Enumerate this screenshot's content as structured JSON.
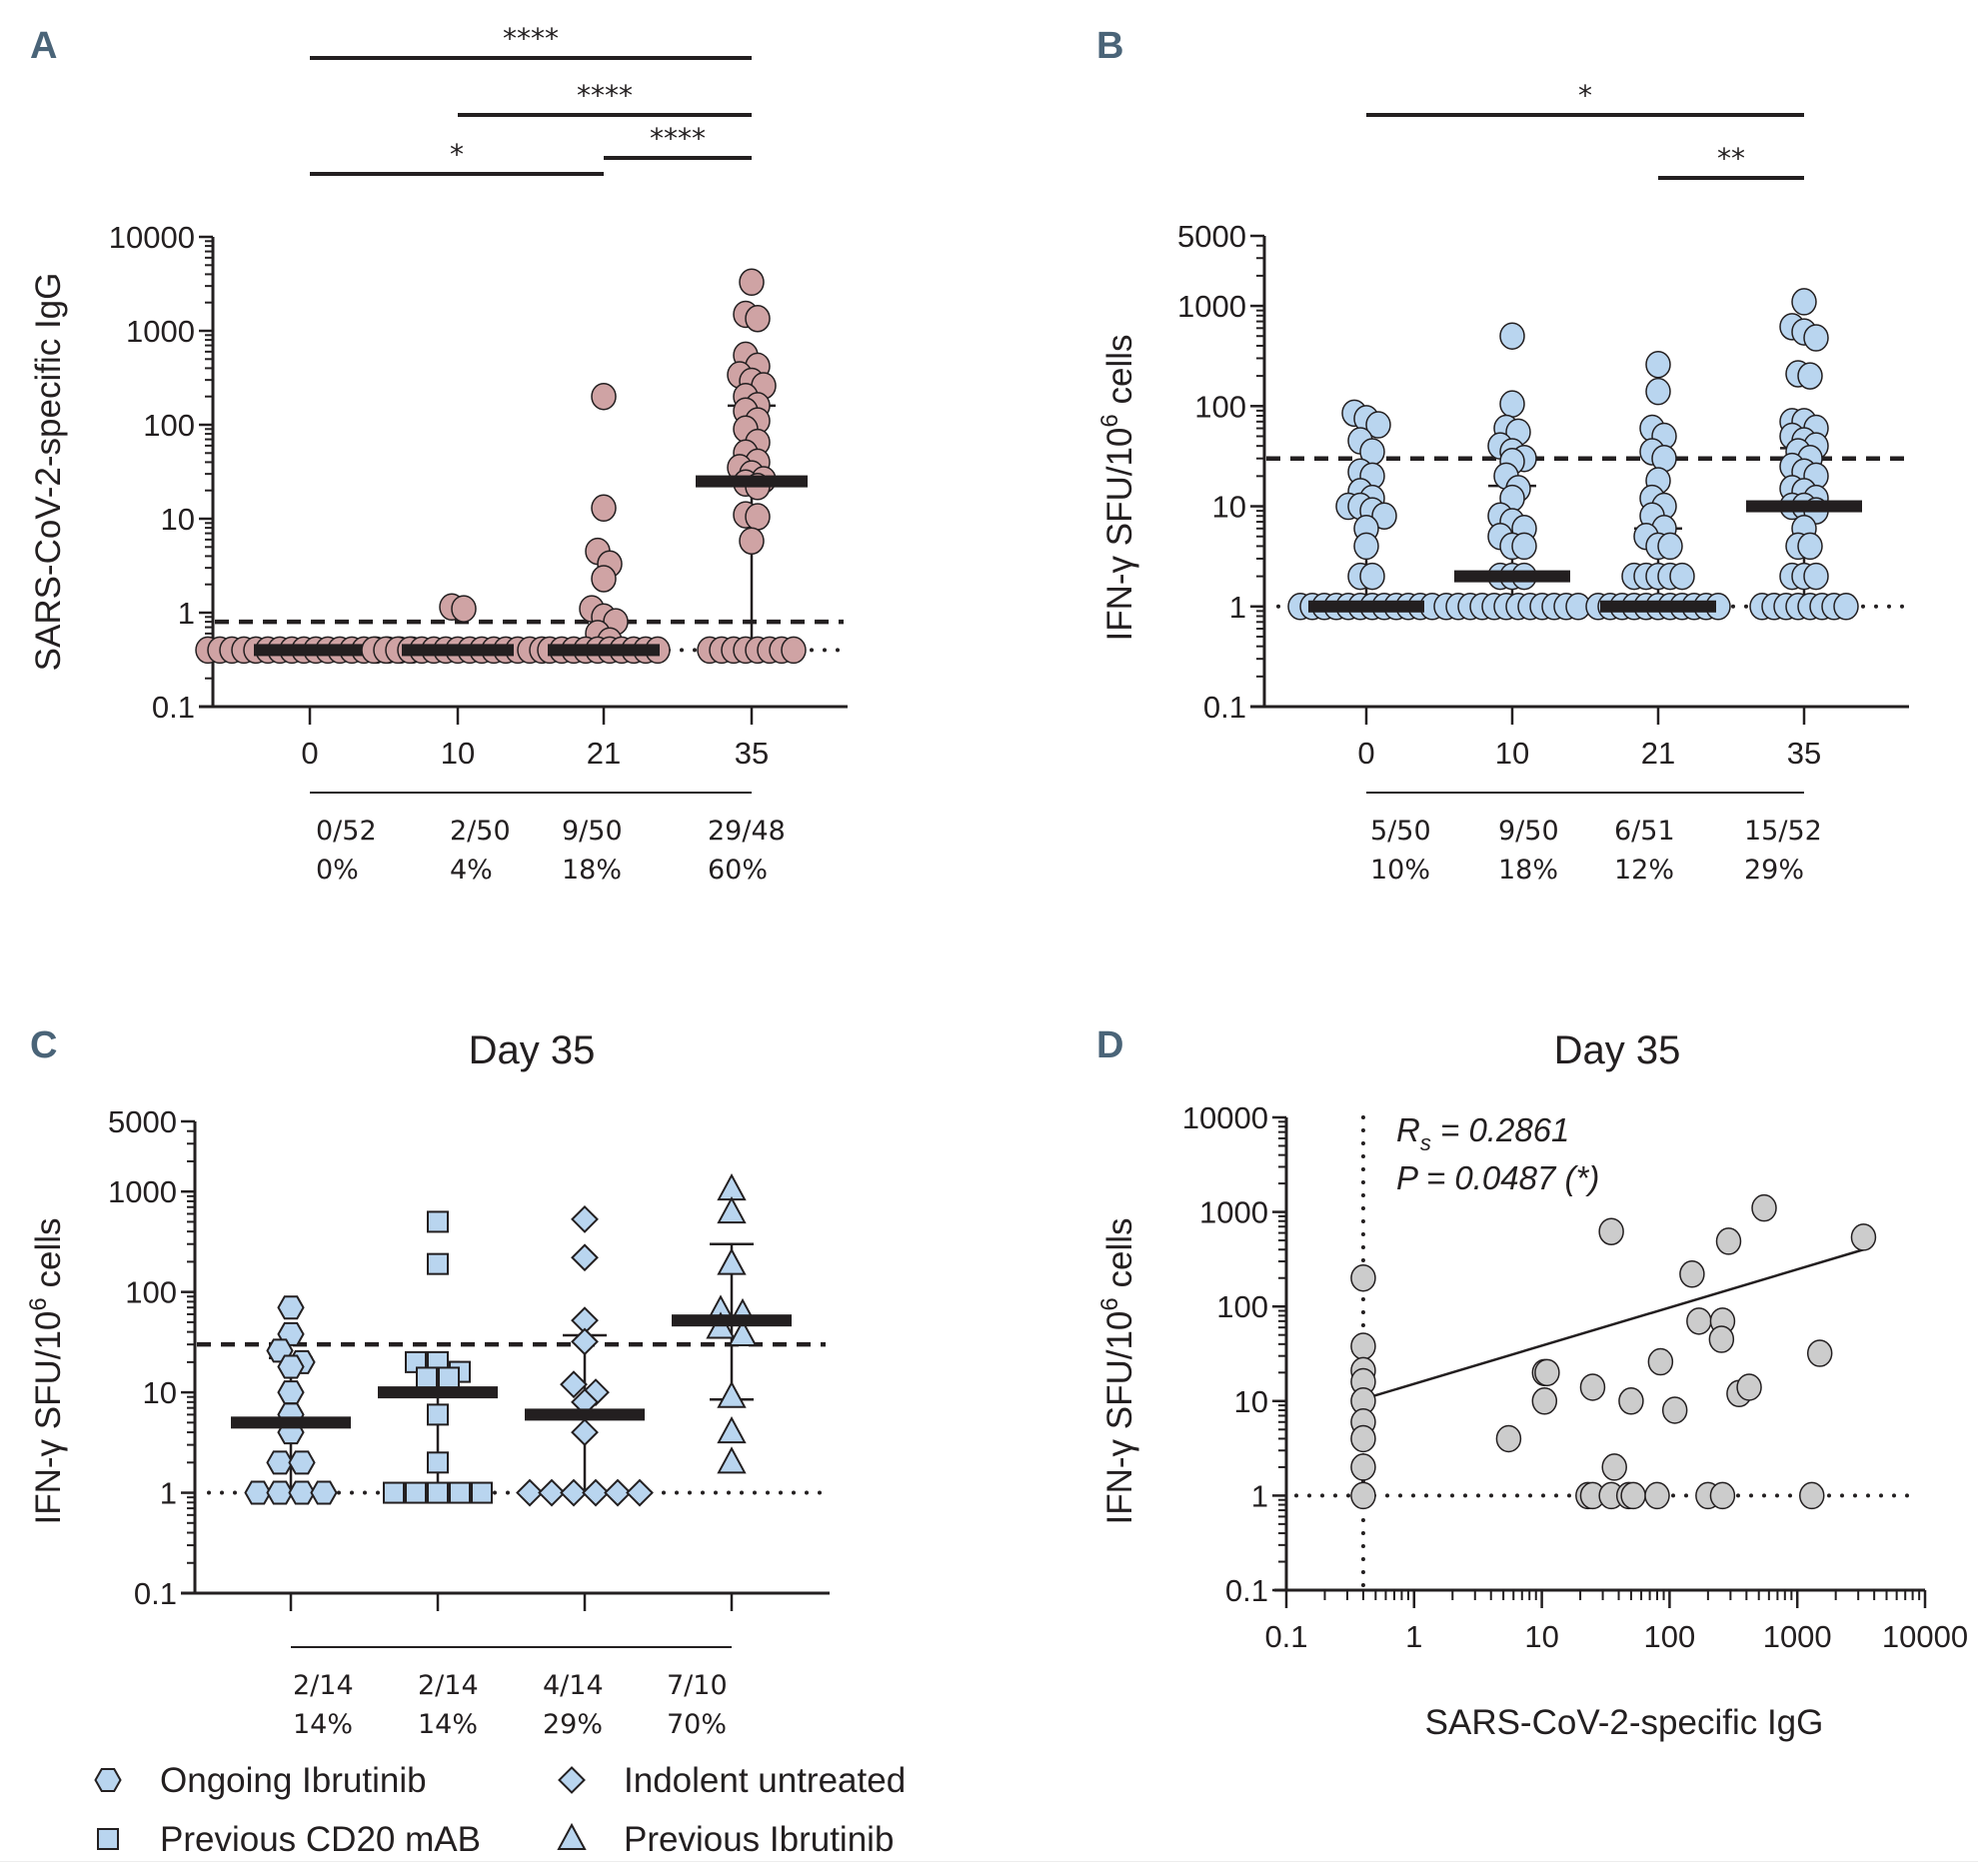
{
  "figure": {
    "bottom_rule": true
  },
  "colors": {
    "igg_marker": "#cfa3a4",
    "ifn_marker": "#b9d5ef",
    "corr_marker": "#cccccc",
    "marker_stroke": "#231f20",
    "panel_letter": "#4a6478",
    "ink": "#231f20"
  },
  "chart_data": [
    {
      "id": "A",
      "panel_letter": "A",
      "type": "scatter",
      "subtype": "dot-plot-median-iqr",
      "title": "",
      "xlabel": "",
      "ylabel": "SARS-CoV-2-specific IgG",
      "yscale": "log",
      "ylim": [
        0.1,
        10000
      ],
      "yticks": [
        0.1,
        1,
        10,
        100,
        1000,
        10000
      ],
      "ytick_labels": [
        "0.1",
        "1",
        "10",
        "100",
        "1000",
        "10000"
      ],
      "categories": [
        "0",
        "10",
        "21",
        "35"
      ],
      "reference_lines": [
        {
          "style": "dashed",
          "y": 0.8,
          "meaning": "positivity cutoff"
        },
        {
          "style": "dotted",
          "y": 0.4,
          "meaning": "detection limit"
        }
      ],
      "series": [
        {
          "name": "Day 0",
          "median": 0.4,
          "q1": 0.4,
          "q3": 0.4,
          "values": [
            0.4,
            0.4,
            0.4,
            0.4,
            0.4,
            0.4,
            0.4,
            0.4,
            0.4,
            0.4,
            0.4,
            0.4,
            0.4,
            0.4,
            0.4,
            0.4,
            0.4,
            0.4
          ]
        },
        {
          "name": "Day 10",
          "median": 0.4,
          "q1": 0.4,
          "q3": 0.4,
          "values": [
            1.15,
            1.1,
            0.4,
            0.4,
            0.4,
            0.4,
            0.4,
            0.4,
            0.4,
            0.4,
            0.4,
            0.4,
            0.4,
            0.4,
            0.4,
            0.4,
            0.4
          ]
        },
        {
          "name": "Day 21",
          "median": 0.4,
          "q1": 0.4,
          "q3": 0.4,
          "values": [
            200,
            13,
            4.5,
            3.3,
            2.3,
            1.1,
            0.9,
            0.8,
            0.6,
            0.5,
            0.4,
            0.4,
            0.4,
            0.4,
            0.4,
            0.4,
            0.4,
            0.4,
            0.4,
            0.4
          ]
        },
        {
          "name": "Day 35",
          "median": 25,
          "q1": 0.4,
          "q3": 160,
          "values": [
            3300,
            1500,
            1350,
            550,
            420,
            340,
            290,
            260,
            200,
            160,
            140,
            110,
            90,
            65,
            50,
            40,
            35,
            30,
            26,
            24,
            22,
            11,
            10.5,
            5.8,
            0.4,
            0.4,
            0.4,
            0.4,
            0.4,
            0.4,
            0.4,
            0.4
          ]
        }
      ],
      "significance": [
        {
          "from": "0",
          "to": "35",
          "label": "****",
          "level": 1
        },
        {
          "from": "10",
          "to": "35",
          "label": "****",
          "level": 2
        },
        {
          "from": "21",
          "to": "35",
          "label": "****",
          "level": 3
        },
        {
          "from": "0",
          "to": "21",
          "label": "*",
          "level": 4
        }
      ],
      "responder_table": [
        {
          "fraction": "0/52",
          "percent": "0%"
        },
        {
          "fraction": "2/50",
          "percent": "4%"
        },
        {
          "fraction": "9/50",
          "percent": "18%"
        },
        {
          "fraction": "29/48",
          "percent": "60%"
        }
      ]
    },
    {
      "id": "B",
      "panel_letter": "B",
      "type": "scatter",
      "subtype": "dot-plot-median-iqr",
      "title": "",
      "xlabel": "",
      "ylabel": "IFN-γ SFU/10⁶ cells",
      "yscale": "log",
      "ylim": [
        0.1,
        5000
      ],
      "yticks": [
        0.1,
        1,
        10,
        100,
        1000,
        5000
      ],
      "ytick_labels": [
        "0.1",
        "1",
        "10",
        "100",
        "1000",
        "5000"
      ],
      "categories": [
        "0",
        "10",
        "21",
        "35"
      ],
      "reference_lines": [
        {
          "style": "dashed",
          "y": 30,
          "meaning": "positivity cutoff"
        },
        {
          "style": "dotted",
          "y": 1,
          "meaning": "detection limit"
        }
      ],
      "series": [
        {
          "name": "Day 0",
          "median": 1,
          "q1": 1,
          "q3": 10,
          "values": [
            85,
            75,
            65,
            45,
            35,
            22,
            20,
            14,
            12,
            10,
            10,
            9,
            8,
            6,
            4,
            2,
            2,
            1,
            1,
            1,
            1,
            1,
            1,
            1,
            1,
            1,
            1,
            1,
            1
          ]
        },
        {
          "name": "Day 10",
          "median": 2,
          "q1": 1,
          "q3": 16,
          "values": [
            500,
            105,
            60,
            55,
            40,
            35,
            30,
            28,
            20,
            15,
            12,
            8,
            7,
            6,
            5,
            4,
            4,
            2,
            2,
            2,
            1,
            1,
            1,
            1,
            1,
            1,
            1,
            1,
            1,
            1,
            1,
            1
          ]
        },
        {
          "name": "Day 21",
          "median": 1,
          "q1": 1,
          "q3": 6,
          "values": [
            260,
            140,
            60,
            50,
            35,
            30,
            18,
            12,
            10,
            8,
            6,
            5,
            4,
            4,
            2,
            2,
            2,
            2,
            2,
            1,
            1,
            1,
            1,
            1,
            1,
            1,
            1,
            1,
            1,
            1
          ]
        },
        {
          "name": "Day 35",
          "median": 10,
          "q1": 1,
          "q3": 38,
          "values": [
            1100,
            620,
            550,
            480,
            210,
            200,
            70,
            70,
            60,
            50,
            45,
            40,
            35,
            30,
            25,
            22,
            20,
            15,
            14,
            12,
            10,
            10,
            9,
            6,
            4,
            4,
            2,
            2,
            2,
            1,
            1,
            1,
            1,
            1,
            1,
            1,
            1
          ]
        }
      ],
      "significance": [
        {
          "from": "0",
          "to": "35",
          "label": "*",
          "level": 1
        },
        {
          "from": "21",
          "to": "35",
          "label": "**",
          "level": 2
        }
      ],
      "responder_table": [
        {
          "fraction": "5/50",
          "percent": "10%"
        },
        {
          "fraction": "9/50",
          "percent": "18%"
        },
        {
          "fraction": "6/51",
          "percent": "12%"
        },
        {
          "fraction": "15/52",
          "percent": "29%"
        }
      ]
    },
    {
      "id": "C",
      "panel_letter": "C",
      "type": "scatter",
      "subtype": "dot-plot-median-iqr",
      "title": "Day 35",
      "xlabel": "",
      "ylabel": "IFN-γ SFU/10⁶ cells",
      "yscale": "log",
      "ylim": [
        0.1,
        5000
      ],
      "yticks": [
        0.1,
        1,
        10,
        100,
        1000,
        5000
      ],
      "ytick_labels": [
        "0.1",
        "1",
        "10",
        "100",
        "1000",
        "5000"
      ],
      "categories": [
        "Ongoing Ibrutinib",
        "Previous CD20 mAB",
        "Indolent untreated",
        "Previous Ibrutinib"
      ],
      "reference_lines": [
        {
          "style": "dashed",
          "y": 30,
          "meaning": "positivity cutoff"
        },
        {
          "style": "dotted",
          "y": 1,
          "meaning": "detection limit"
        }
      ],
      "series": [
        {
          "name": "Ongoing Ibrutinib",
          "marker": "hexagon",
          "median": 5,
          "q1": 1,
          "q3": 22,
          "values": [
            70,
            38,
            26,
            20,
            18,
            10,
            6,
            4,
            2,
            2,
            1,
            1,
            1,
            1
          ]
        },
        {
          "name": "Previous CD20 mAB",
          "marker": "square",
          "median": 10,
          "q1": 1,
          "q3": 20,
          "values": [
            500,
            190,
            20,
            20,
            16,
            14,
            14,
            6,
            2,
            1,
            1,
            1,
            1,
            1
          ]
        },
        {
          "name": "Indolent untreated",
          "marker": "diamond",
          "median": 6,
          "q1": 1,
          "q3": 37,
          "values": [
            530,
            220,
            52,
            32,
            12,
            10,
            8,
            4,
            1,
            1,
            1,
            1,
            1,
            1
          ]
        },
        {
          "name": "Previous Ibrutinib",
          "marker": "triangle",
          "median": 52,
          "q1": 8.5,
          "q3": 300,
          "values": [
            1050,
            620,
            190,
            65,
            60,
            44,
            37,
            9,
            4,
            2
          ]
        }
      ],
      "responder_table": [
        {
          "fraction": "2/14",
          "percent": "14%"
        },
        {
          "fraction": "2/14",
          "percent": "14%"
        },
        {
          "fraction": "4/14",
          "percent": "29%"
        },
        {
          "fraction": "7/10",
          "percent": "70%"
        }
      ],
      "legend": {
        "placement": "bottom",
        "items": [
          {
            "label": "Ongoing Ibrutinib",
            "marker": "hexagon"
          },
          {
            "label": "Indolent untreated",
            "marker": "diamond"
          },
          {
            "label": "Previous CD20 mAB",
            "marker": "square"
          },
          {
            "label": "Previous Ibrutinib",
            "marker": "triangle"
          }
        ]
      }
    },
    {
      "id": "D",
      "panel_letter": "D",
      "type": "scatter",
      "title": "Day 35",
      "xlabel": "SARS-CoV-2-specific IgG",
      "ylabel": "IFN-γ SFU/10⁶ cells",
      "xscale": "log",
      "yscale": "log",
      "xlim": [
        0.1,
        10000
      ],
      "ylim": [
        0.1,
        10000
      ],
      "xticks": [
        0.1,
        1,
        10,
        100,
        1000,
        10000
      ],
      "xtick_labels": [
        "0.1",
        "1",
        "10",
        "100",
        "1000",
        "10000"
      ],
      "yticks": [
        0.1,
        1,
        10,
        100,
        1000,
        10000
      ],
      "ytick_labels": [
        "0.1",
        "1",
        "10",
        "100",
        "1000",
        "10000"
      ],
      "reference_lines": [
        {
          "style": "dotted",
          "orientation": "vertical",
          "x": 0.4
        },
        {
          "style": "dotted",
          "orientation": "horizontal",
          "y": 1
        }
      ],
      "points": [
        {
          "x": 0.4,
          "y": 200
        },
        {
          "x": 0.4,
          "y": 38
        },
        {
          "x": 0.4,
          "y": 21
        },
        {
          "x": 0.4,
          "y": 16
        },
        {
          "x": 0.4,
          "y": 10
        },
        {
          "x": 0.4,
          "y": 6
        },
        {
          "x": 0.4,
          "y": 4
        },
        {
          "x": 0.4,
          "y": 2
        },
        {
          "x": 0.4,
          "y": 1
        },
        {
          "x": 5.5,
          "y": 4
        },
        {
          "x": 10.5,
          "y": 20
        },
        {
          "x": 11,
          "y": 20
        },
        {
          "x": 10.5,
          "y": 10
        },
        {
          "x": 25,
          "y": 14
        },
        {
          "x": 35,
          "y": 620
        },
        {
          "x": 37,
          "y": 2
        },
        {
          "x": 50,
          "y": 10
        },
        {
          "x": 85,
          "y": 26
        },
        {
          "x": 110,
          "y": 8
        },
        {
          "x": 150,
          "y": 220
        },
        {
          "x": 170,
          "y": 70
        },
        {
          "x": 260,
          "y": 70
        },
        {
          "x": 255,
          "y": 45
        },
        {
          "x": 290,
          "y": 490
        },
        {
          "x": 350,
          "y": 12
        },
        {
          "x": 420,
          "y": 14
        },
        {
          "x": 550,
          "y": 1100
        },
        {
          "x": 1500,
          "y": 32
        },
        {
          "x": 3300,
          "y": 540
        },
        {
          "x": 23,
          "y": 1
        },
        {
          "x": 25,
          "y": 1
        },
        {
          "x": 35,
          "y": 1
        },
        {
          "x": 48,
          "y": 1
        },
        {
          "x": 52,
          "y": 1
        },
        {
          "x": 80,
          "y": 1
        },
        {
          "x": 200,
          "y": 1
        },
        {
          "x": 260,
          "y": 1
        },
        {
          "x": 1300,
          "y": 1
        }
      ],
      "regression_line": {
        "x_start": 0.4,
        "y_start": 10.5,
        "x_end": 3300,
        "y_end": 400
      },
      "annotations": [
        {
          "text_main": "R",
          "text_sub": "s",
          "text_rest": " = 0.2861"
        },
        {
          "text": "P = 0.0487 (*)"
        }
      ]
    }
  ]
}
